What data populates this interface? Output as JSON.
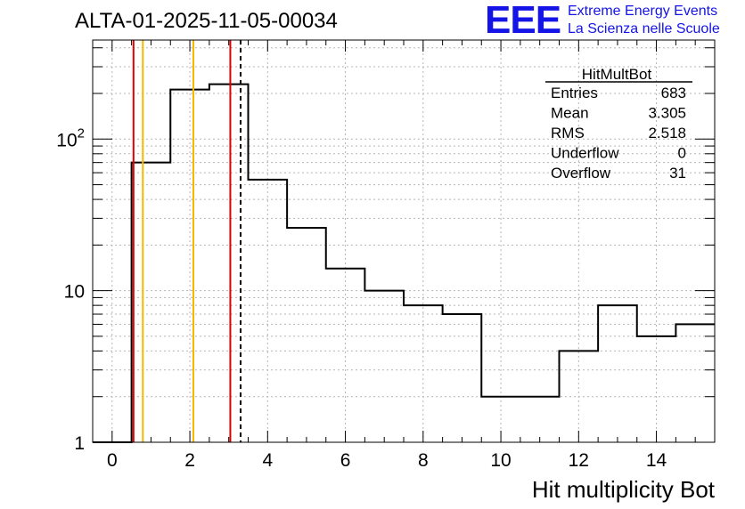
{
  "header": {
    "title": "ALTA-01-2025-11-05-00034",
    "logo_text": "EEE",
    "tagline_1": "Extreme Energy Events",
    "tagline_2": "La Scienza nelle Scuole"
  },
  "stats_box": {
    "name": "HitMultBot",
    "rows": [
      {
        "label": "Entries",
        "value": "683"
      },
      {
        "label": "Mean",
        "value": "3.305"
      },
      {
        "label": "RMS",
        "value": "2.518"
      },
      {
        "label": "Underflow",
        "value": "0"
      },
      {
        "label": "Overflow",
        "value": "31"
      }
    ]
  },
  "chart_data": {
    "type": "histogram",
    "title": "ALTA-01-2025-11-05-00034",
    "xlabel": "Hit multiplicity Bot",
    "ylabel": "",
    "xlim": [
      -0.5,
      15.5
    ],
    "ylim": [
      1,
      450
    ],
    "y_scale": "log",
    "grid": true,
    "bin_width": 1,
    "bins": [
      {
        "x": 0,
        "value": 0
      },
      {
        "x": 1,
        "value": 70
      },
      {
        "x": 2,
        "value": 212
      },
      {
        "x": 3,
        "value": 230
      },
      {
        "x": 4,
        "value": 54
      },
      {
        "x": 5,
        "value": 26
      },
      {
        "x": 6,
        "value": 14
      },
      {
        "x": 7,
        "value": 10
      },
      {
        "x": 8,
        "value": 8
      },
      {
        "x": 9,
        "value": 7
      },
      {
        "x": 10,
        "value": 2
      },
      {
        "x": 11,
        "value": 2
      },
      {
        "x": 12,
        "value": 4
      },
      {
        "x": 13,
        "value": 8
      },
      {
        "x": 14,
        "value": 5
      },
      {
        "x": 15,
        "value": 6
      }
    ],
    "x_ticks": [
      "0",
      "2",
      "4",
      "6",
      "8",
      "10",
      "12",
      "14"
    ],
    "y_ticks": [
      {
        "value": 1,
        "base": "1",
        "exp": ""
      },
      {
        "value": 10,
        "base": "10",
        "exp": ""
      },
      {
        "value": 100,
        "base": "10",
        "exp": "2"
      }
    ],
    "vertical_markers": [
      {
        "x": 0.55,
        "color": "#e00000",
        "style": "solid"
      },
      {
        "x": 0.79,
        "color": "#f5b800",
        "style": "solid"
      },
      {
        "x": 2.09,
        "color": "#f5b800",
        "style": "solid"
      },
      {
        "x": 3.04,
        "color": "#e00000",
        "style": "solid"
      },
      {
        "x": 3.305,
        "color": "#000000",
        "style": "dashed"
      }
    ]
  }
}
